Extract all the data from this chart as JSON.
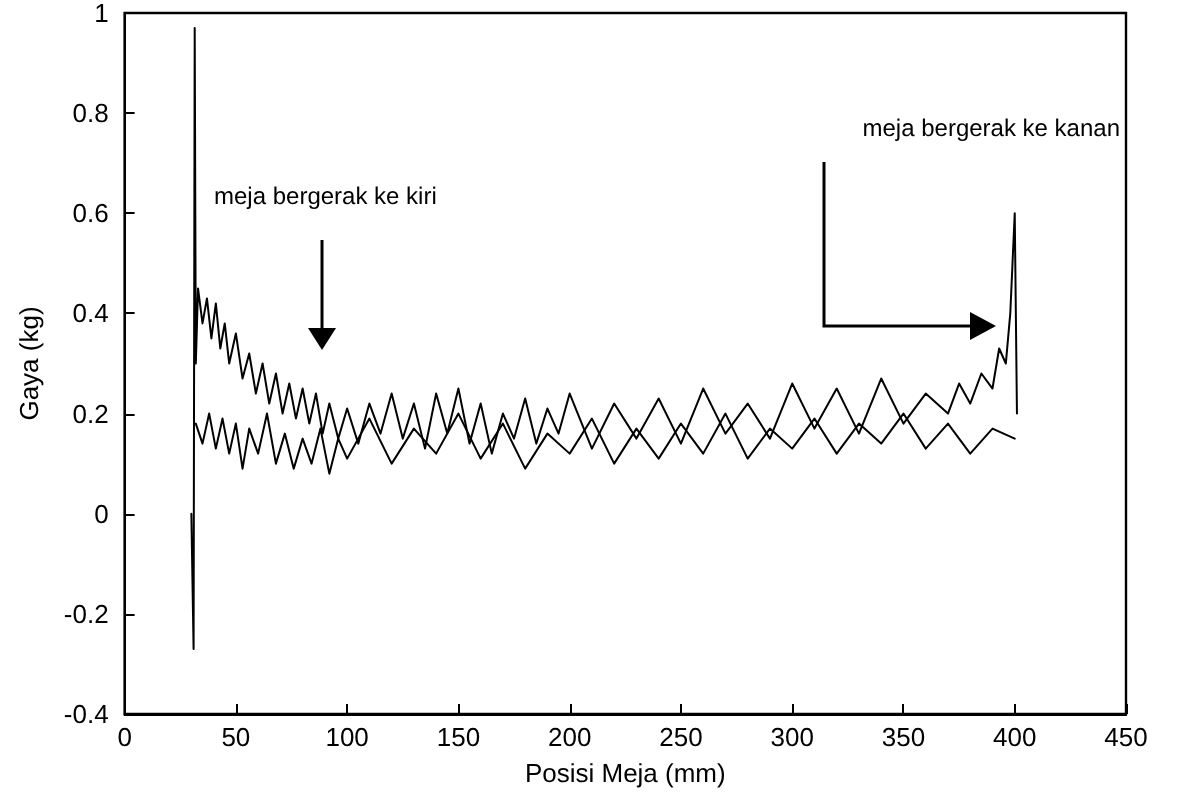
{
  "chart_data": {
    "type": "line",
    "xlabel": "Posisi Meja (mm)",
    "ylabel": "Gaya (kg)",
    "xlim": [
      0,
      450
    ],
    "xticks": [
      0,
      50,
      100,
      150,
      200,
      250,
      300,
      350,
      400,
      450
    ],
    "ylim": [
      -0.4,
      1
    ],
    "yticks": [
      -0.4,
      -0.2,
      0,
      0.2,
      0.4,
      0.6,
      0.8,
      1
    ],
    "grid": false,
    "marker": "none",
    "line_style": "solid",
    "annotations": [
      "meja bergerak ke kiri",
      "meja bergerak ke kanan"
    ],
    "series": [
      {
        "color": "#000000",
        "x": [
          30,
          31,
          31.5,
          32,
          33,
          35,
          37,
          39,
          41,
          43,
          45,
          47,
          50,
          53,
          56,
          59,
          62,
          65,
          68,
          71,
          74,
          77,
          80,
          83,
          86,
          89,
          92,
          96,
          100,
          105,
          110,
          115,
          120,
          125,
          130,
          135,
          140,
          145,
          150,
          155,
          160,
          165,
          170,
          175,
          180,
          185,
          190,
          195,
          200,
          210,
          220,
          230,
          240,
          250,
          260,
          270,
          280,
          290,
          300,
          310,
          320,
          330,
          340,
          350,
          360,
          370,
          375,
          380,
          385,
          390,
          393,
          396,
          398,
          399,
          400,
          401
        ],
        "values": [
          0,
          -0.27,
          0.97,
          0.3,
          0.45,
          0.38,
          0.43,
          0.35,
          0.42,
          0.33,
          0.38,
          0.3,
          0.36,
          0.27,
          0.32,
          0.24,
          0.3,
          0.22,
          0.28,
          0.2,
          0.26,
          0.19,
          0.25,
          0.18,
          0.24,
          0.16,
          0.22,
          0.15,
          0.21,
          0.14,
          0.22,
          0.16,
          0.24,
          0.15,
          0.22,
          0.13,
          0.24,
          0.16,
          0.25,
          0.14,
          0.22,
          0.12,
          0.2,
          0.15,
          0.23,
          0.14,
          0.21,
          0.16,
          0.24,
          0.13,
          0.22,
          0.15,
          0.23,
          0.14,
          0.25,
          0.16,
          0.22,
          0.15,
          0.26,
          0.17,
          0.25,
          0.16,
          0.27,
          0.18,
          0.24,
          0.2,
          0.26,
          0.22,
          0.28,
          0.25,
          0.33,
          0.3,
          0.4,
          0.5,
          0.6,
          0.2
        ]
      },
      {
        "color": "#000000",
        "x": [
          32,
          35,
          38,
          41,
          44,
          47,
          50,
          53,
          56,
          60,
          64,
          68,
          72,
          76,
          80,
          84,
          88,
          92,
          96,
          100,
          110,
          120,
          130,
          140,
          150,
          160,
          170,
          180,
          190,
          200,
          210,
          220,
          230,
          240,
          250,
          260,
          270,
          280,
          290,
          300,
          310,
          320,
          330,
          340,
          350,
          360,
          370,
          380,
          390,
          400
        ],
        "values": [
          0.18,
          0.14,
          0.2,
          0.13,
          0.19,
          0.12,
          0.18,
          0.09,
          0.17,
          0.12,
          0.2,
          0.1,
          0.16,
          0.09,
          0.15,
          0.1,
          0.17,
          0.08,
          0.15,
          0.11,
          0.19,
          0.1,
          0.17,
          0.12,
          0.2,
          0.11,
          0.18,
          0.09,
          0.16,
          0.12,
          0.19,
          0.1,
          0.17,
          0.11,
          0.18,
          0.12,
          0.2,
          0.11,
          0.17,
          0.13,
          0.19,
          0.12,
          0.18,
          0.14,
          0.2,
          0.13,
          0.18,
          0.12,
          0.17,
          0.15
        ]
      }
    ]
  }
}
